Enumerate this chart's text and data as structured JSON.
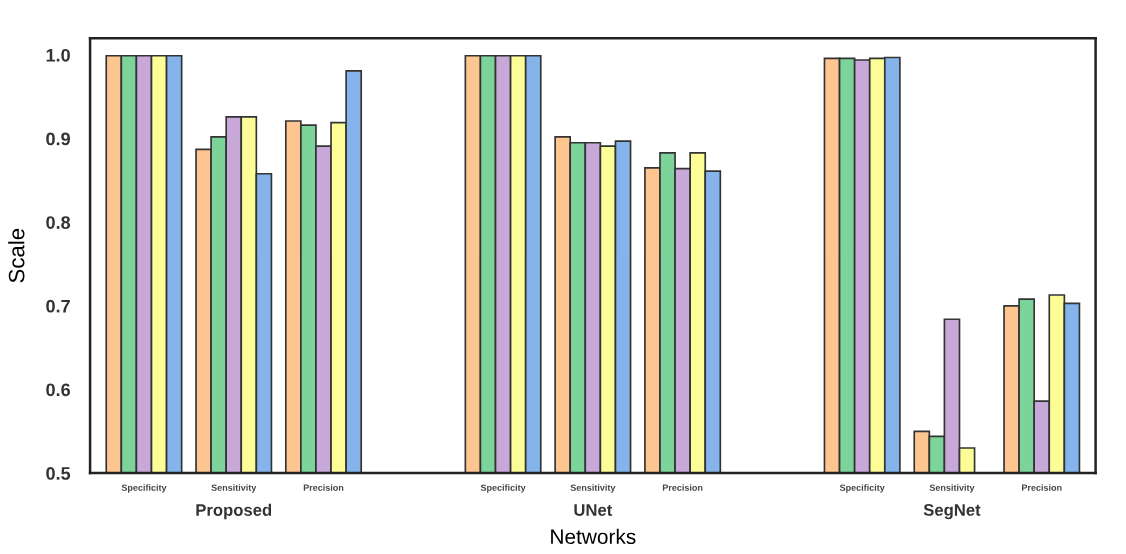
{
  "chart_data": {
    "type": "bar",
    "xlabel": "Networks",
    "ylabel": "Scale",
    "categories": [
      "Specificity",
      "Sensitivity",
      "Precision",
      null,
      "Specificity",
      "Sensitivity",
      "Precision",
      null,
      "Specificity",
      "Sensitivity",
      "Precision"
    ],
    "annotations": [
      "Proposed",
      "UNet",
      "SegNet"
    ],
    "series": [
      {
        "color": "#fdc590",
        "values": [
          0.999,
          0.887,
          0.921,
          null,
          0.999,
          0.902,
          0.865,
          null,
          0.996,
          0.55,
          0.7
        ]
      },
      {
        "color": "#7dd49a",
        "values": [
          0.999,
          0.902,
          0.916,
          null,
          0.999,
          0.895,
          0.883,
          null,
          0.996,
          0.544,
          0.708
        ]
      },
      {
        "color": "#c8a8d8",
        "values": [
          0.999,
          0.926,
          0.891,
          null,
          0.999,
          0.895,
          0.864,
          null,
          0.994,
          0.684,
          0.586
        ]
      },
      {
        "color": "#fdfd98",
        "values": [
          0.999,
          0.926,
          0.919,
          null,
          0.999,
          0.891,
          0.883,
          null,
          0.996,
          0.53,
          0.713
        ]
      },
      {
        "color": "#85b4ec",
        "values": [
          0.999,
          0.858,
          0.981,
          null,
          0.999,
          0.897,
          0.861,
          null,
          0.997,
          null,
          0.703
        ]
      }
    ],
    "ylim": [
      0.5,
      1.02
    ],
    "yticks": [
      {
        "value": 0.5,
        "label": "0.5"
      },
      {
        "value": 0.6,
        "label": "0.6"
      },
      {
        "value": 0.7,
        "label": "0.7"
      },
      {
        "value": 0.8,
        "label": "0.8"
      },
      {
        "value": 0.9,
        "label": "0.9"
      },
      {
        "value": 1.0,
        "label": "1.0"
      }
    ],
    "grid": false,
    "legend": false
  }
}
